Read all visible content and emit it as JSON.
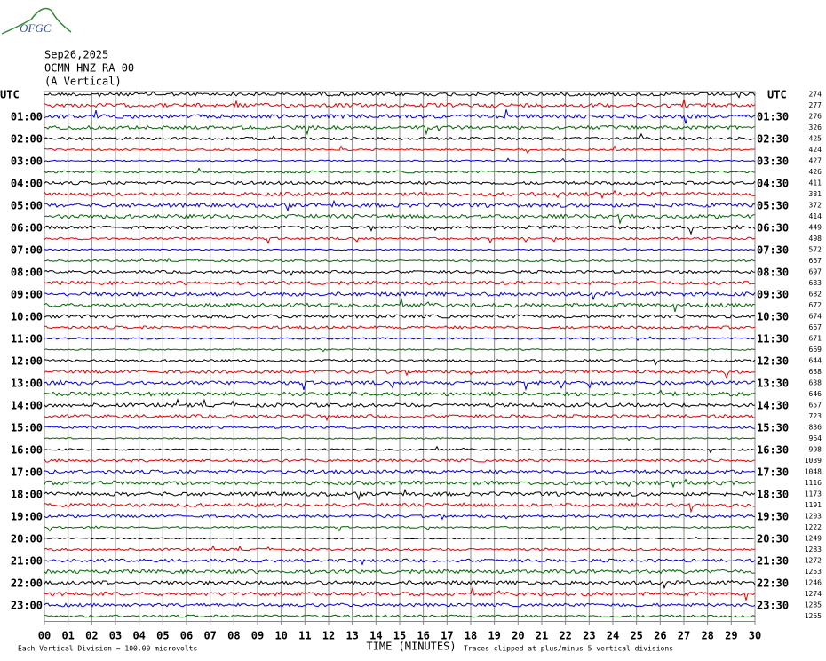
{
  "logo": "OFGC",
  "header": {
    "date": "Sep26,2025",
    "station": "OCMN HNZ RA 00",
    "component": "(A Vertical)"
  },
  "left_corner": "UTC",
  "right_corner": "UTC",
  "left_labels": [
    "01:00",
    "02:00",
    "03:00",
    "04:00",
    "05:00",
    "06:00",
    "07:00",
    "08:00",
    "09:00",
    "10:00",
    "11:00",
    "12:00",
    "13:00",
    "14:00",
    "15:00",
    "16:00",
    "17:00",
    "18:00",
    "19:00",
    "20:00",
    "21:00",
    "22:00",
    "23:00"
  ],
  "right_labels": [
    "01:30",
    "02:30",
    "03:30",
    "04:30",
    "05:30",
    "06:30",
    "07:30",
    "08:30",
    "09:30",
    "10:30",
    "11:30",
    "12:30",
    "13:30",
    "14:30",
    "15:30",
    "16:30",
    "17:30",
    "18:30",
    "19:30",
    "20:30",
    "21:30",
    "22:30",
    "23:30"
  ],
  "trace_levels": [
    274,
    277,
    276,
    326,
    425,
    424,
    427,
    426,
    411,
    381,
    372,
    414,
    449,
    498,
    572,
    667,
    697,
    683,
    682,
    672,
    674,
    667,
    671,
    669,
    644,
    638,
    638,
    646,
    657,
    723,
    836,
    964,
    998,
    1039,
    1048,
    1116,
    1173,
    1191,
    1203,
    1222,
    1249,
    1283,
    1272,
    1253,
    1246,
    1274,
    1285,
    1265
  ],
  "x_ticks": [
    "00",
    "01",
    "02",
    "03",
    "04",
    "05",
    "06",
    "07",
    "08",
    "09",
    "10",
    "11",
    "12",
    "13",
    "14",
    "15",
    "16",
    "17",
    "18",
    "19",
    "20",
    "21",
    "22",
    "23",
    "24",
    "25",
    "26",
    "27",
    "28",
    "29",
    "30"
  ],
  "x_axis_title": "TIME (MINUTES)",
  "footer": {
    "scale_note": "Each Vertical Division =  100.00 microvolts",
    "clip_note": "Traces clipped at plus/minus 5 vertical divisions"
  }
}
